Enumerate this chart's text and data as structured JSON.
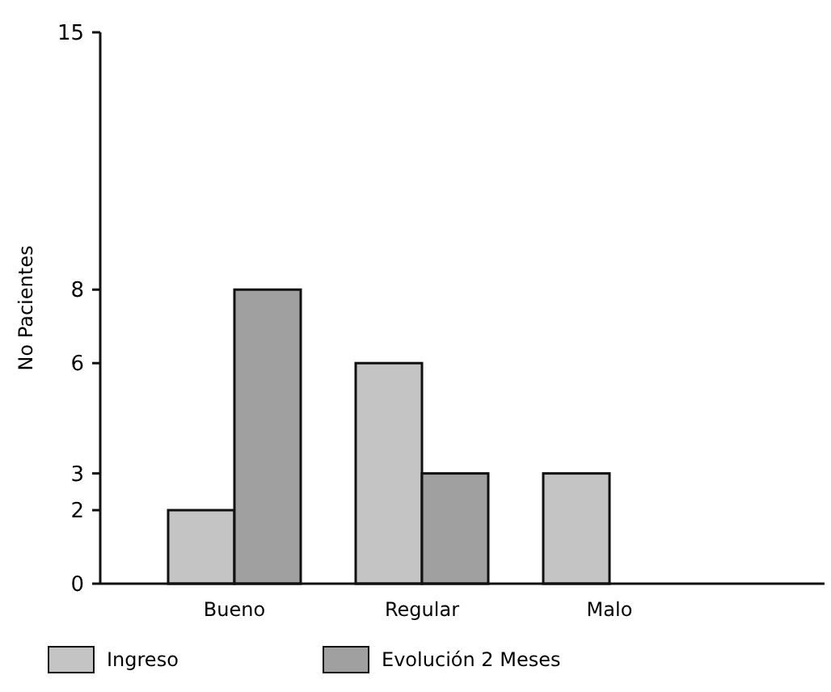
{
  "chart_data": {
    "type": "bar",
    "ylabel": "No Pacientes",
    "categories": [
      "Bueno",
      "Regular",
      "Malo"
    ],
    "series": [
      {
        "name": "Ingreso",
        "color": "#c4c4c4",
        "values": [
          2,
          6,
          3
        ]
      },
      {
        "name": "Evolución 2 Meses",
        "color": "#a0a0a0",
        "values": [
          8,
          3,
          0
        ]
      }
    ],
    "ylim": [
      0,
      15
    ],
    "yticks": [
      0,
      2,
      3,
      6,
      8,
      15
    ],
    "grid": false,
    "legend": "bottom"
  }
}
